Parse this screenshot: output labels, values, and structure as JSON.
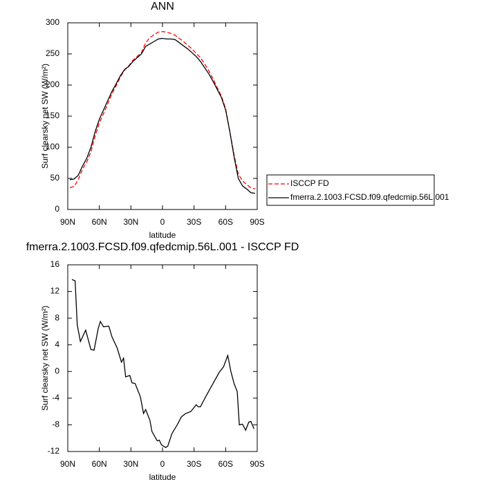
{
  "chart_data": [
    {
      "type": "line",
      "title": "ANN",
      "xlabel": "latitude",
      "ylabel": "Surf clearsky net SW (W/m²)",
      "x": [
        88,
        84,
        80,
        76,
        72,
        68,
        64,
        60,
        56,
        52,
        48,
        44,
        40,
        36,
        32,
        28,
        24,
        20,
        16,
        12,
        8,
        4,
        0,
        -4,
        -8,
        -12,
        -16,
        -20,
        -24,
        -28,
        -32,
        -36,
        -40,
        -44,
        -48,
        -52,
        -56,
        -60,
        -64,
        -68,
        -72,
        -76,
        -80,
        -84,
        -88
      ],
      "series": [
        {
          "name": "ISCCP FD",
          "color": "#ff0000",
          "line_style": "dashed",
          "values": [
            35,
            37,
            48,
            65,
            76,
            93,
            118,
            139,
            154,
            170,
            186,
            199,
            213,
            224,
            231,
            240,
            246,
            252,
            268,
            276,
            281,
            285,
            286,
            285,
            283,
            280,
            275,
            270,
            264,
            258,
            251,
            244,
            234,
            223,
            210,
            196,
            182,
            162,
            125,
            88,
            57,
            46,
            40,
            35,
            33
          ]
        },
        {
          "name": "fmerra.2.1003.FCSD.f09.qfedcmip.56L.001",
          "color": "#000000",
          "line_style": "solid",
          "values": [
            48,
            49,
            55,
            70,
            82,
            100,
            125,
            145,
            160,
            175,
            190,
            202,
            215,
            225,
            230,
            238,
            244,
            250,
            262,
            266,
            270,
            274,
            275,
            274,
            274,
            273,
            268,
            263,
            258,
            252,
            246,
            238,
            228,
            218,
            206,
            193,
            180,
            160,
            125,
            85,
            50,
            38,
            33,
            27,
            26
          ]
        }
      ],
      "xlim": [
        90,
        -90
      ],
      "xticks": [
        {
          "value": 90,
          "label": "90N"
        },
        {
          "value": 60,
          "label": "60N"
        },
        {
          "value": 30,
          "label": "30N"
        },
        0,
        {
          "value": -30,
          "label": "30S"
        },
        {
          "value": -60,
          "label": "60S"
        },
        {
          "value": -90,
          "label": "90S"
        }
      ],
      "ylim": [
        0,
        300
      ],
      "yticks": [
        0,
        50,
        100,
        150,
        200,
        250,
        300
      ],
      "legend": "right"
    },
    {
      "type": "line",
      "title": "fmerra.2.1003.FCSD.f09.qfedcmip.56L.001 - ISCCP FD",
      "xlabel": "latitude",
      "ylabel": "Surf clearsky net SW (W/m²)",
      "x": [
        86,
        83,
        81,
        78,
        73,
        68,
        65,
        61,
        59,
        56,
        51,
        48,
        43,
        39,
        37,
        35,
        31,
        29,
        26,
        21,
        18,
        16,
        12,
        10,
        5,
        3,
        1,
        -3,
        -5,
        -9,
        -14,
        -18,
        -22,
        -27,
        -32,
        -34,
        -36,
        -41,
        -48,
        -54,
        -58,
        -62,
        -65,
        -68,
        -71,
        -73,
        -76,
        -79,
        -82,
        -84,
        -87
      ],
      "values": [
        13.8,
        13.6,
        7,
        4.5,
        6.2,
        3.3,
        3.2,
        6.5,
        7.5,
        6.7,
        6.8,
        5.2,
        3.5,
        1.4,
        2,
        -0.8,
        -0.6,
        -1.7,
        -1.8,
        -3.8,
        -6.3,
        -5.7,
        -7.3,
        -9,
        -10.4,
        -10.3,
        -11,
        -11.4,
        -11.2,
        -9.3,
        -8,
        -6.8,
        -6.3,
        -6,
        -5,
        -5.3,
        -5.3,
        -3.8,
        -1.8,
        -0.1,
        0.7,
        2.4,
        0,
        -1.8,
        -3,
        -8,
        -7.9,
        -8.8,
        -7.6,
        -7.5,
        -8.6
      ],
      "color": "#000000",
      "xlim": [
        90,
        -90
      ],
      "xticks": [
        {
          "value": 90,
          "label": "90N"
        },
        {
          "value": 60,
          "label": "60N"
        },
        {
          "value": 30,
          "label": "30N"
        },
        0,
        {
          "value": -30,
          "label": "30S"
        },
        {
          "value": -60,
          "label": "60S"
        },
        {
          "value": -90,
          "label": "90S"
        }
      ],
      "ylim": [
        -12,
        16
      ],
      "yticks": [
        -12,
        -8,
        -4,
        0,
        4,
        8,
        12,
        16
      ]
    }
  ]
}
